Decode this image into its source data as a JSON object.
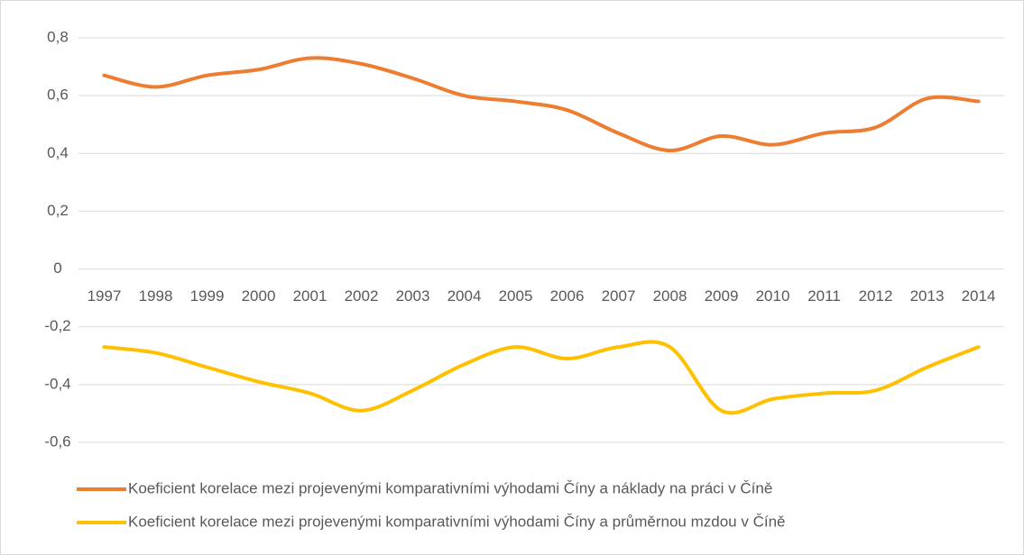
{
  "chart_data": {
    "type": "line",
    "categories": [
      "1997",
      "1998",
      "1999",
      "2000",
      "2001",
      "2002",
      "2003",
      "2004",
      "2005",
      "2006",
      "2007",
      "2008",
      "2009",
      "2010",
      "2011",
      "2012",
      "2013",
      "2014"
    ],
    "series": [
      {
        "name": "Koeficient korelace mezi projevenými komparativními výhodami Číny a náklady na práci v Číně",
        "color": "#ed7d31",
        "values": [
          0.67,
          0.63,
          0.67,
          0.69,
          0.73,
          0.71,
          0.66,
          0.6,
          0.58,
          0.55,
          0.47,
          0.41,
          0.46,
          0.43,
          0.47,
          0.49,
          0.59,
          0.58
        ]
      },
      {
        "name": "Koeficient korelace mezi projevenými komparativními výhodami Číny a průměrnou mzdou v Číně",
        "color": "#ffc000",
        "values": [
          -0.27,
          -0.29,
          -0.34,
          -0.39,
          -0.43,
          -0.49,
          -0.42,
          -0.33,
          -0.27,
          -0.31,
          -0.27,
          -0.27,
          -0.49,
          -0.45,
          -0.43,
          -0.42,
          -0.34,
          -0.27
        ]
      }
    ],
    "ylim": [
      -0.6,
      0.8
    ],
    "yticks": [
      {
        "value": -0.6,
        "label": "-0,6"
      },
      {
        "value": -0.4,
        "label": "-0,4"
      },
      {
        "value": -0.2,
        "label": "-0,2"
      },
      0,
      {
        "value": 0.2,
        "label": "0,2"
      },
      {
        "value": 0.4,
        "label": "0,4"
      },
      {
        "value": 0.6,
        "label": "0,6"
      },
      {
        "value": 0.8,
        "label": "0,8"
      }
    ],
    "grid": true,
    "legend": "bottom"
  }
}
